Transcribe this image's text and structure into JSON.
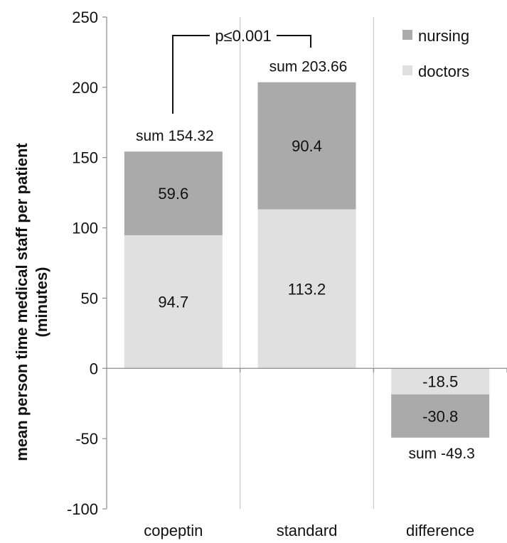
{
  "chart_data": {
    "type": "bar",
    "stacked": true,
    "categories": [
      "copeptin",
      "standard",
      "difference"
    ],
    "series": [
      {
        "name": "doctors",
        "color": "#e0e0e0",
        "values": [
          94.7,
          113.2,
          -18.5
        ]
      },
      {
        "name": "nursing",
        "color": "#aaaaaa",
        "values": [
          59.6,
          90.4,
          -30.8
        ]
      }
    ],
    "sums": [
      "sum 154.32",
      "sum 203.66",
      "sum -49.3"
    ],
    "ylabel_line1": "mean person time medical staff per patient",
    "ylabel_line2": "(minutes)",
    "ylim": [
      -100,
      250
    ],
    "yticks": [
      -100,
      -50,
      0,
      50,
      100,
      150,
      200,
      250
    ],
    "grid": "vertical separators between categories",
    "legend": {
      "placement": "top-right",
      "order": [
        "nursing",
        "doctors"
      ]
    },
    "annotation": {
      "text": "p≤0.001",
      "between": [
        "copeptin",
        "standard"
      ]
    }
  }
}
